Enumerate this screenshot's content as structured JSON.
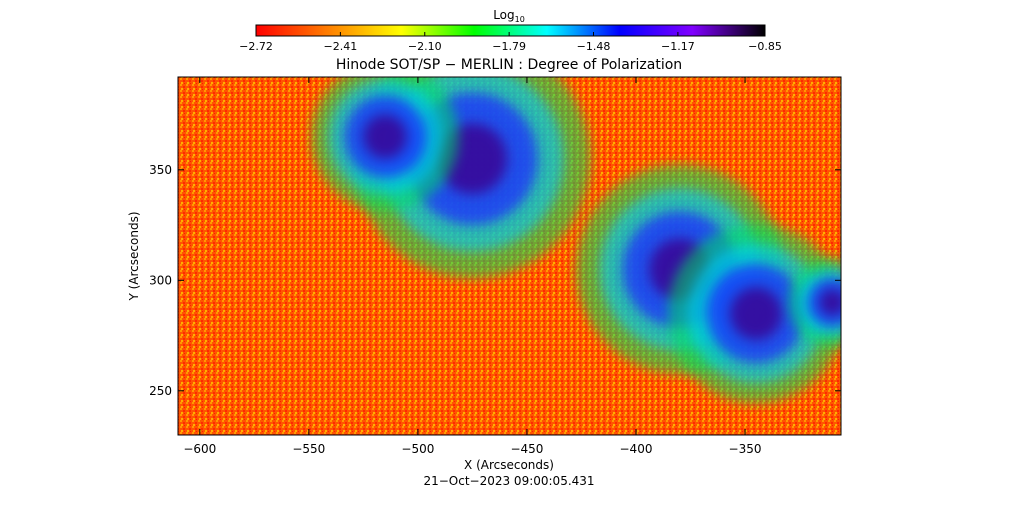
{
  "chart_data": {
    "type": "heatmap",
    "title": "Hinode SOT/SP − MERLIN : Degree of Polarization",
    "xlabel": "X (Arcseconds)",
    "ylabel": "Y (Arcseconds)",
    "date_label": "21−Oct−2023 09:00:05.431",
    "xlim": [
      -610,
      -306
    ],
    "ylim": [
      230,
      392
    ],
    "x_ticks": [
      -600,
      -550,
      -500,
      -450,
      -400,
      -350
    ],
    "x_tick_labels": [
      "−600",
      "−550",
      "−500",
      "−450",
      "−400",
      "−350"
    ],
    "y_ticks": [
      250,
      300,
      350
    ],
    "y_tick_labels": [
      "250",
      "300",
      "350"
    ],
    "colorbar": {
      "label_base": "Log",
      "label_sub": "10",
      "range": [
        -2.72,
        -0.85
      ],
      "tick_values": [
        -2.72,
        -2.41,
        -2.1,
        -1.79,
        -1.48,
        -1.17,
        -0.85
      ],
      "tick_labels": [
        "−2.72",
        "−2.41",
        "−2.10",
        "−1.79",
        "−1.48",
        "−1.17",
        "−0.85"
      ],
      "colormap": [
        "#ff0000",
        "#ff7f00",
        "#ffff00",
        "#00ff00",
        "#00ffff",
        "#0000ff",
        "#8000ff",
        "#000000"
      ]
    },
    "regions_high_polarization": [
      {
        "x": -475,
        "y": 355,
        "radius": 40
      },
      {
        "x": -515,
        "y": 365,
        "radius": 25
      },
      {
        "x": -380,
        "y": 305,
        "radius": 35
      },
      {
        "x": -345,
        "y": 285,
        "radius": 30
      },
      {
        "x": -310,
        "y": 290,
        "radius": 15
      }
    ],
    "grid": false
  }
}
